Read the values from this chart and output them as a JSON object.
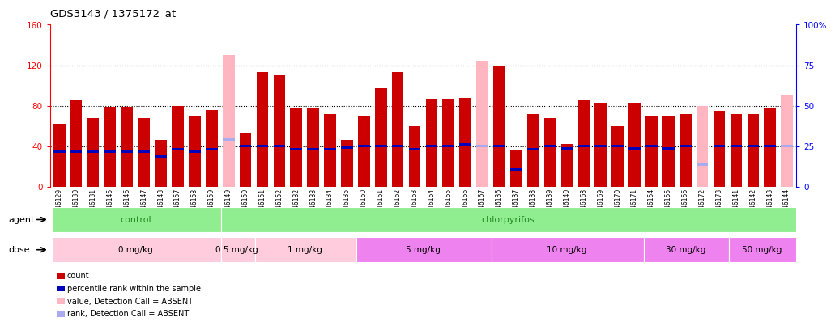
{
  "title": "GDS3143 / 1375172_at",
  "samples": [
    "GSM246129",
    "GSM246130",
    "GSM246131",
    "GSM246145",
    "GSM246146",
    "GSM246147",
    "GSM246148",
    "GSM246157",
    "GSM246158",
    "GSM246159",
    "GSM246149",
    "GSM246150",
    "GSM246151",
    "GSM246152",
    "GSM246132",
    "GSM246133",
    "GSM246134",
    "GSM246135",
    "GSM246160",
    "GSM246161",
    "GSM246162",
    "GSM246163",
    "GSM246164",
    "GSM246165",
    "GSM246166",
    "GSM246167",
    "GSM246136",
    "GSM246137",
    "GSM246138",
    "GSM246139",
    "GSM246140",
    "GSM246168",
    "GSM246169",
    "GSM246170",
    "GSM246171",
    "GSM246154",
    "GSM246155",
    "GSM246156",
    "GSM246172",
    "GSM246173",
    "GSM246141",
    "GSM246142",
    "GSM246143",
    "GSM246144"
  ],
  "count_values": [
    62,
    85,
    68,
    79,
    79,
    68,
    46,
    80,
    70,
    76,
    130,
    53,
    113,
    110,
    78,
    78,
    72,
    46,
    70,
    97,
    113,
    60,
    87,
    87,
    88,
    124,
    119,
    36,
    72,
    68,
    42,
    85,
    83,
    60,
    83,
    70,
    70,
    72,
    80,
    75,
    72,
    72,
    78,
    90
  ],
  "rank_values": [
    35,
    35,
    35,
    35,
    35,
    35,
    30,
    37,
    35,
    37,
    47,
    40,
    40,
    40,
    37,
    37,
    37,
    39,
    40,
    40,
    40,
    37,
    40,
    40,
    42,
    40,
    40,
    17,
    37,
    40,
    38,
    40,
    40,
    40,
    38,
    40,
    38,
    40,
    22,
    40,
    40,
    40,
    40,
    40
  ],
  "absent_mask": [
    false,
    false,
    false,
    false,
    false,
    false,
    false,
    false,
    false,
    false,
    true,
    false,
    false,
    false,
    false,
    false,
    false,
    false,
    false,
    false,
    false,
    false,
    false,
    false,
    false,
    true,
    false,
    false,
    false,
    false,
    false,
    false,
    false,
    false,
    false,
    false,
    false,
    false,
    true,
    false,
    false,
    false,
    false,
    true
  ],
  "agent_groups": [
    {
      "label": "control",
      "start": 0,
      "end": 10
    },
    {
      "label": "chlorpyrifos",
      "start": 10,
      "end": 44
    }
  ],
  "dose_groups": [
    {
      "label": "0 mg/kg",
      "start": 0,
      "end": 10,
      "color": "#FFCCDD"
    },
    {
      "label": "0.5 mg/kg",
      "start": 10,
      "end": 12,
      "color": "#FFCCDD"
    },
    {
      "label": "1 mg/kg",
      "start": 12,
      "end": 18,
      "color": "#FFCCDD"
    },
    {
      "label": "5 mg/kg",
      "start": 18,
      "end": 26,
      "color": "#EE82EE"
    },
    {
      "label": "10 mg/kg",
      "start": 26,
      "end": 35,
      "color": "#EE82EE"
    },
    {
      "label": "30 mg/kg",
      "start": 35,
      "end": 40,
      "color": "#EE82EE"
    },
    {
      "label": "50 mg/kg",
      "start": 40,
      "end": 44,
      "color": "#EE82EE"
    }
  ],
  "ylim_left": [
    0,
    160
  ],
  "ylim_right": [
    0,
    100
  ],
  "yticks_left": [
    0,
    40,
    80,
    120,
    160
  ],
  "yticks_right": [
    0,
    25,
    50,
    75,
    100
  ],
  "color_count": "#CC0000",
  "color_count_absent": "#FFB6C1",
  "color_rank": "#0000BB",
  "color_rank_absent": "#AAAAEE",
  "agent_color": "#90EE90",
  "agent_text_color": "#228B22",
  "bar_width": 0.7
}
